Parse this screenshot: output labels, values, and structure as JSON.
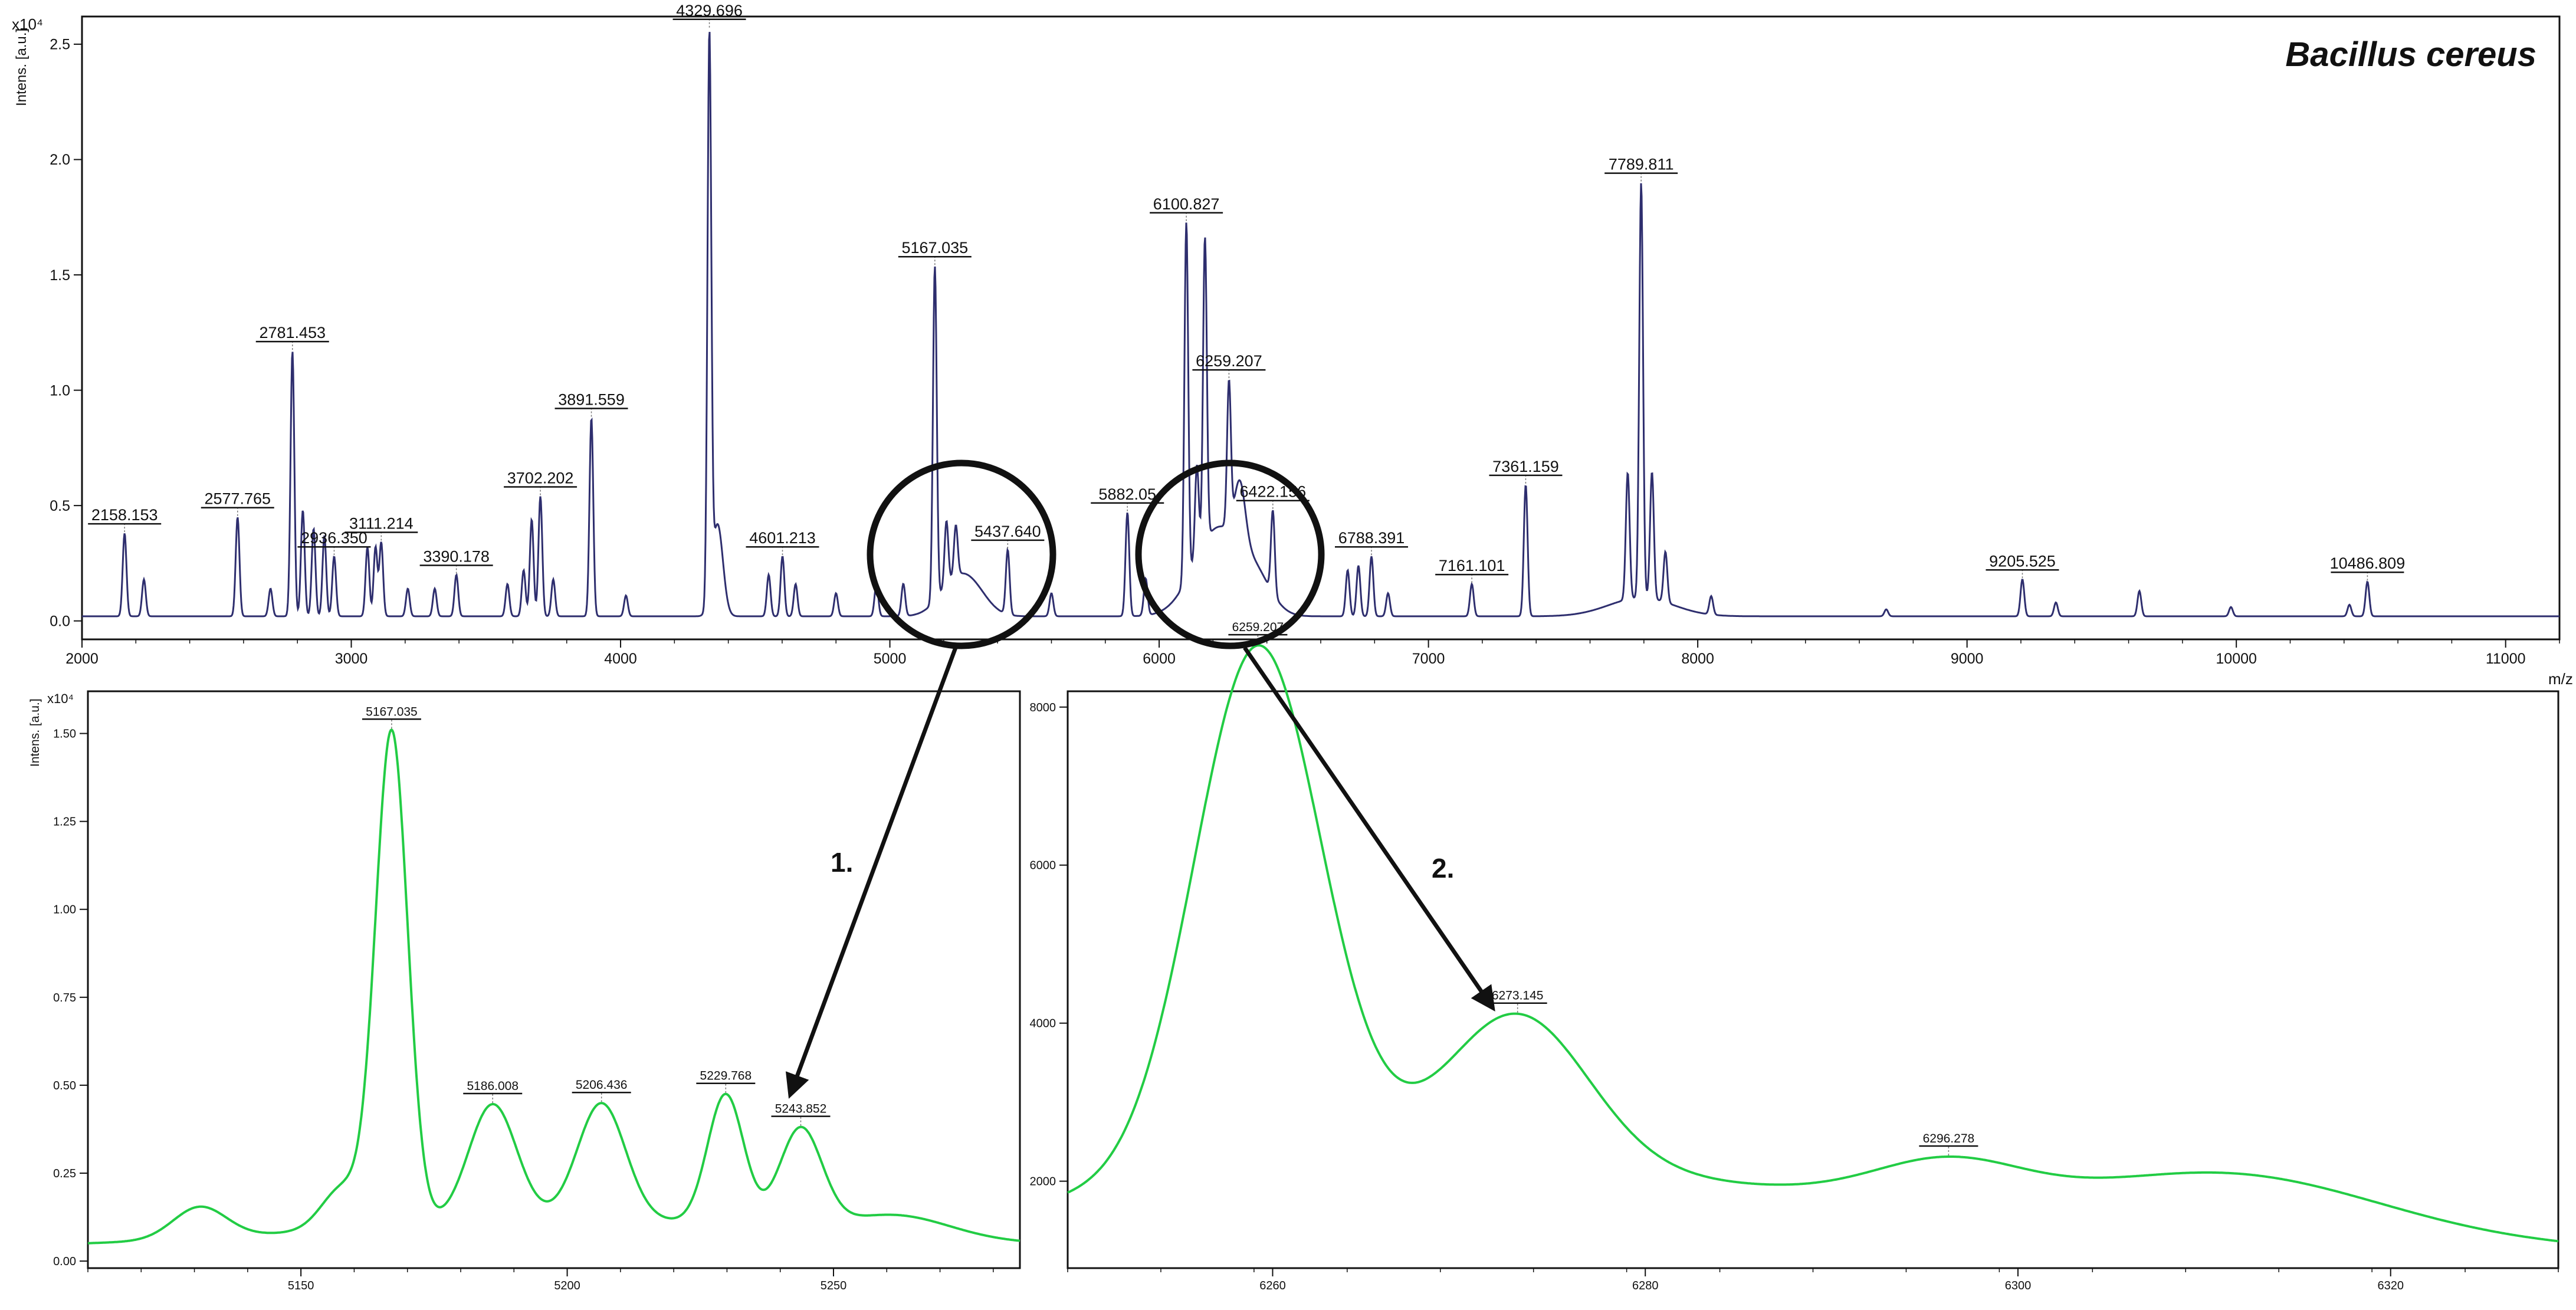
{
  "figure_title": "Bacillus cereus",
  "callouts": {
    "first": "1.",
    "second": "2."
  },
  "colors": {
    "main_trace": "#2e2e6e",
    "zoom_trace": "#22cc44",
    "axis": "#111111"
  },
  "chart_data": [
    {
      "type": "line",
      "ylabel": "Intens. [a.u.]",
      "ymult": "x10⁴",
      "xlabel": "m/z",
      "xlim": [
        2000,
        11200
      ],
      "ylim": [
        -0.08,
        2.62
      ],
      "xticks": [
        2000,
        3000,
        4000,
        5000,
        6000,
        7000,
        8000,
        9000,
        10000,
        11000
      ],
      "yticks": [
        0.0,
        0.5,
        1.0,
        1.5,
        2.0,
        2.5
      ],
      "y_tick_labels": [
        "0.0",
        "0.5",
        "1.0",
        "1.5",
        "2.0",
        "2.5"
      ],
      "baseline": 0.02,
      "peaks": [
        {
          "x": 2158.153,
          "y": 0.36,
          "label": "2158.153"
        },
        {
          "x": 2230,
          "y": 0.16
        },
        {
          "x": 2577.765,
          "y": 0.43,
          "label": "2577.765"
        },
        {
          "x": 2700,
          "y": 0.12
        },
        {
          "x": 2781.453,
          "y": 1.15,
          "label": "2781.453"
        },
        {
          "x": 2820,
          "y": 0.46
        },
        {
          "x": 2860,
          "y": 0.38
        },
        {
          "x": 2900,
          "y": 0.35
        },
        {
          "x": 2936.35,
          "y": 0.26,
          "label": "2936.350"
        },
        {
          "x": 3060,
          "y": 0.3
        },
        {
          "x": 3090,
          "y": 0.3
        },
        {
          "x": 3111.214,
          "y": 0.32,
          "label": "3111.214"
        },
        {
          "x": 3210,
          "y": 0.12
        },
        {
          "x": 3310,
          "y": 0.12
        },
        {
          "x": 3390.178,
          "y": 0.18,
          "label": "3390.178"
        },
        {
          "x": 3580,
          "y": 0.14
        },
        {
          "x": 3640,
          "y": 0.2
        },
        {
          "x": 3670,
          "y": 0.42
        },
        {
          "x": 3702.202,
          "y": 0.52,
          "label": "3702.202"
        },
        {
          "x": 3750,
          "y": 0.16
        },
        {
          "x": 3891.559,
          "y": 0.86,
          "label": "3891.559"
        },
        {
          "x": 4020,
          "y": 0.09
        },
        {
          "x": 4329.696,
          "y": 2.42,
          "label": "4329.696"
        },
        {
          "x": 4360,
          "y": 0.4,
          "w": 20
        },
        {
          "x": 4550,
          "y": 0.18
        },
        {
          "x": 4601.213,
          "y": 0.26,
          "label": "4601.213"
        },
        {
          "x": 4650,
          "y": 0.14
        },
        {
          "x": 4800,
          "y": 0.1
        },
        {
          "x": 4950,
          "y": 0.14
        },
        {
          "x": 5050,
          "y": 0.14
        },
        {
          "x": 5167.035,
          "y": 1.45,
          "label": "5167.035"
        },
        {
          "x": 5210,
          "y": 0.28
        },
        {
          "x": 5245,
          "y": 0.22
        },
        {
          "x": 5300,
          "y": 0.12,
          "w": 60
        },
        {
          "x": 5437.64,
          "y": 0.28,
          "label": "5437.640"
        },
        {
          "x": 5600,
          "y": 0.1
        },
        {
          "x": 5882.05,
          "y": 0.45,
          "label": "5882.05"
        },
        {
          "x": 5950,
          "y": 0.16
        },
        {
          "x": 6100.827,
          "y": 1.55,
          "label": "6100.827"
        },
        {
          "x": 6140,
          "y": 0.4
        },
        {
          "x": 6170,
          "y": 1.32
        },
        {
          "x": 6259.207,
          "y": 0.62,
          "label": "6259.207"
        },
        {
          "x": 6300,
          "y": 0.26,
          "w": 20
        },
        {
          "x": 6422.156,
          "y": 0.36,
          "label": "6422.156"
        },
        {
          "x": 6700,
          "y": 0.2
        },
        {
          "x": 6740,
          "y": 0.22
        },
        {
          "x": 6788.391,
          "y": 0.26,
          "label": "6788.391"
        },
        {
          "x": 6850,
          "y": 0.1
        },
        {
          "x": 7161.101,
          "y": 0.14,
          "label": "7161.101"
        },
        {
          "x": 7361.159,
          "y": 0.57,
          "label": "7361.159"
        },
        {
          "x": 7740,
          "y": 0.55
        },
        {
          "x": 7789.811,
          "y": 1.8,
          "label": "7789.811"
        },
        {
          "x": 7830,
          "y": 0.55
        },
        {
          "x": 7880,
          "y": 0.22
        },
        {
          "x": 8050,
          "y": 0.08
        },
        {
          "x": 8700,
          "y": 0.03
        },
        {
          "x": 9205.525,
          "y": 0.16,
          "label": "9205.525"
        },
        {
          "x": 9330,
          "y": 0.06
        },
        {
          "x": 9640,
          "y": 0.11
        },
        {
          "x": 9980,
          "y": 0.04
        },
        {
          "x": 10420,
          "y": 0.05
        },
        {
          "x": 10486.809,
          "y": 0.15,
          "label": "10486.809"
        }
      ],
      "humps": [
        {
          "x": 5230,
          "y": 0.1,
          "w": 60
        },
        {
          "x": 6220,
          "y": 0.38,
          "w": 90
        },
        {
          "x": 6360,
          "y": 0.12,
          "w": 60
        },
        {
          "x": 7790,
          "y": 0.08,
          "w": 120
        }
      ]
    },
    {
      "type": "line",
      "ylabel": "Intens. [a.u.]",
      "ymult": "x10⁴",
      "xlim": [
        5110,
        5285
      ],
      "ylim": [
        -0.02,
        1.62
      ],
      "xticks": [
        5150,
        5200,
        5250
      ],
      "yticks": [
        0.0,
        0.25,
        0.5,
        0.75,
        1.0,
        1.25,
        1.5
      ],
      "y_tick_labels": [
        "0.00",
        "0.25",
        "0.50",
        "0.75",
        "1.00",
        "1.25",
        "1.50"
      ],
      "baseline": 0.04,
      "peaks": [
        {
          "x": 5131,
          "y": 0.09,
          "w": 5
        },
        {
          "x": 5158,
          "y": 0.12,
          "w": 4
        },
        {
          "x": 5167.035,
          "y": 1.4,
          "w": 3,
          "label": "5167.035"
        },
        {
          "x": 5186.008,
          "y": 0.33,
          "w": 4.5,
          "label": "5186.008"
        },
        {
          "x": 5206.436,
          "y": 0.33,
          "w": 4.5,
          "label": "5206.436"
        },
        {
          "x": 5229.768,
          "y": 0.37,
          "w": 3.4,
          "label": "5229.768"
        },
        {
          "x": 5243.852,
          "y": 0.28,
          "w": 4,
          "label": "5243.852"
        }
      ],
      "humps": [
        {
          "x": 5200,
          "y": 0.08,
          "w": 45
        },
        {
          "x": 5262,
          "y": 0.06,
          "w": 10
        }
      ]
    },
    {
      "type": "line",
      "xlim": [
        6249,
        6329
      ],
      "ylim": [
        900,
        8200
      ],
      "xticks": [
        6260,
        6280,
        6300,
        6320
      ],
      "yticks": [
        2000,
        4000,
        6000,
        8000
      ],
      "y_tick_labels": [
        "2000",
        "4000",
        "6000",
        "8000"
      ],
      "baseline": 1050,
      "peaks": [
        {
          "x": 6259.207,
          "y": 6600,
          "w": 3.4,
          "label": "6259.207"
        },
        {
          "x": 6273.145,
          "y": 1900,
          "w": 3.8,
          "label": "6273.145"
        },
        {
          "x": 6296.278,
          "y": 500,
          "w": 4,
          "label": "6296.278"
        },
        {
          "x": 6310,
          "y": 450,
          "w": 7
        }
      ],
      "humps": [
        {
          "x": 6262,
          "y": 900,
          "w": 15
        },
        {
          "x": 6290,
          "y": 650,
          "w": 22
        },
        {
          "x": 6316,
          "y": 250,
          "w": 7
        }
      ]
    }
  ]
}
